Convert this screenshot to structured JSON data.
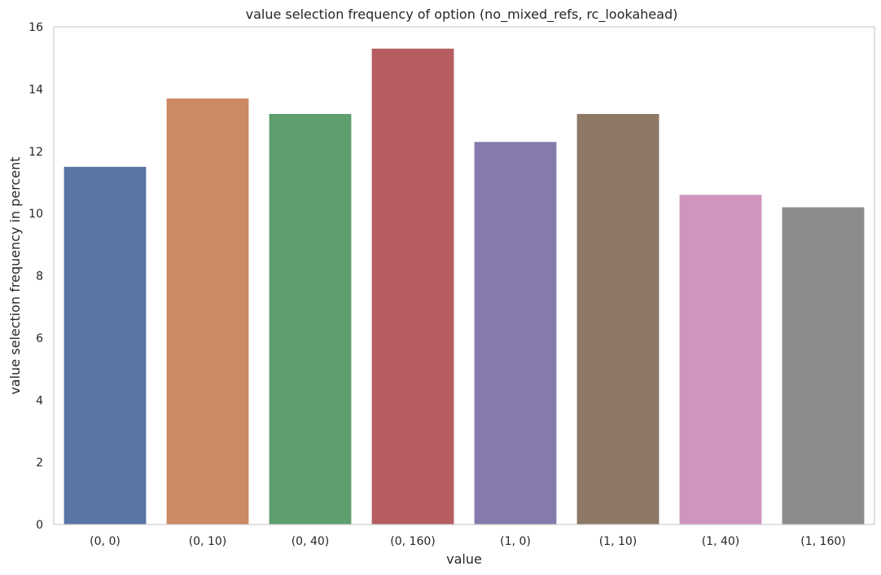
{
  "chart_data": {
    "type": "bar",
    "title": "value selection frequency of option (no_mixed_refs, rc_lookahead)",
    "xlabel": "value",
    "ylabel": "value selection frequency in percent",
    "categories": [
      "(0, 0)",
      "(0, 10)",
      "(0, 40)",
      "(0, 160)",
      "(1, 0)",
      "(1, 10)",
      "(1, 40)",
      "(1, 160)"
    ],
    "values": [
      11.5,
      13.7,
      13.2,
      15.3,
      12.3,
      13.2,
      10.6,
      10.2
    ],
    "colors": [
      "#5975a4",
      "#cc8963",
      "#5f9e6e",
      "#b55d60",
      "#857aab",
      "#8d7866",
      "#d095bf",
      "#8c8c8c"
    ],
    "ylim": [
      0,
      16
    ],
    "yticks": [
      "0",
      "2",
      "4",
      "6",
      "8",
      "10",
      "12",
      "14",
      "16"
    ],
    "grid": false,
    "legend": "none"
  }
}
